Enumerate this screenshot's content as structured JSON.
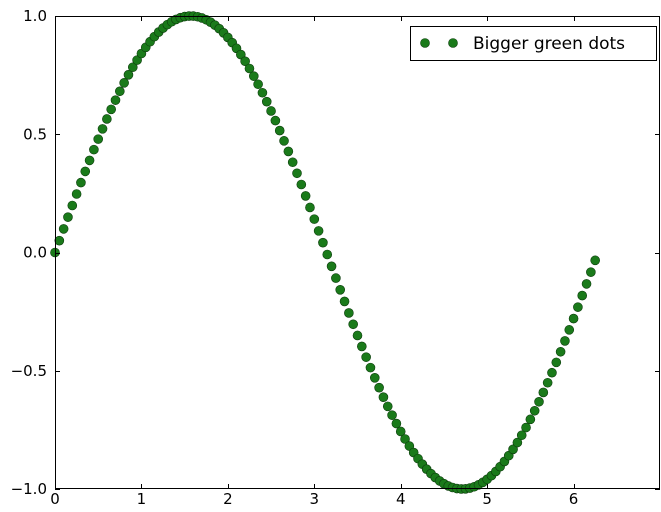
{
  "chart_data": {
    "type": "scatter",
    "title": "",
    "xlabel": "",
    "ylabel": "",
    "xlim": [
      0,
      7
    ],
    "ylim": [
      -1.0,
      1.0
    ],
    "xticks": [
      0,
      1,
      2,
      3,
      4,
      5,
      6
    ],
    "xtick_labels": [
      "0",
      "1",
      "2",
      "3",
      "4",
      "5",
      "6"
    ],
    "yticks": [
      -1.0,
      -0.5,
      0.0,
      0.5,
      1.0
    ],
    "ytick_labels": [
      "−1.0",
      "−0.5",
      "0.0",
      "0.5",
      "1.0"
    ],
    "grid": false,
    "legend_position": "top-right",
    "series": [
      {
        "name": "Bigger green dots",
        "color": "#1a7a1a",
        "marker": "circle",
        "function": "sin(x)",
        "x_start": 0,
        "x_end": 6.25,
        "x_step": 0.05
      }
    ]
  }
}
